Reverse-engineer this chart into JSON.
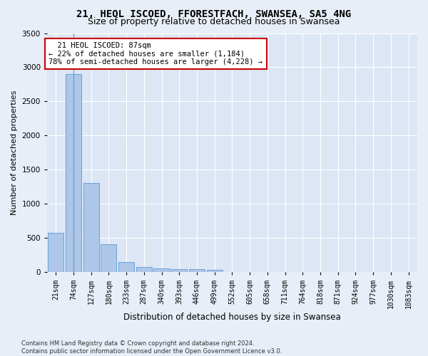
{
  "title_line1": "21, HEOL ISCOED, FFORESTFACH, SWANSEA, SA5 4NG",
  "title_line2": "Size of property relative to detached houses in Swansea",
  "xlabel": "Distribution of detached houses by size in Swansea",
  "ylabel": "Number of detached properties",
  "footnote": "Contains HM Land Registry data © Crown copyright and database right 2024.\nContains public sector information licensed under the Open Government Licence v3.0.",
  "bin_labels": [
    "21sqm",
    "74sqm",
    "127sqm",
    "180sqm",
    "233sqm",
    "287sqm",
    "340sqm",
    "393sqm",
    "446sqm",
    "499sqm",
    "552sqm",
    "605sqm",
    "658sqm",
    "711sqm",
    "764sqm",
    "818sqm",
    "871sqm",
    "924sqm",
    "977sqm",
    "1030sqm",
    "1083sqm"
  ],
  "bar_values": [
    580,
    2900,
    1310,
    415,
    155,
    80,
    60,
    50,
    45,
    40,
    0,
    0,
    0,
    0,
    0,
    0,
    0,
    0,
    0,
    0,
    0
  ],
  "bar_color": "#aec6e8",
  "bar_edge_color": "#5b9bd5",
  "highlight_bin": 1,
  "annotation_text": "  21 HEOL ISCOED: 87sqm\n← 22% of detached houses are smaller (1,184)\n78% of semi-detached houses are larger (4,228) →",
  "annotation_box_color": "#ffffff",
  "annotation_box_edge": "#cc0000",
  "ylim": [
    0,
    3500
  ],
  "yticks": [
    0,
    500,
    1000,
    1500,
    2000,
    2500,
    3000,
    3500
  ],
  "background_color": "#e8eef7",
  "plot_background": "#dce6f5",
  "grid_color": "#ffffff",
  "title_fontsize": 10,
  "subtitle_fontsize": 9,
  "tick_fontsize": 7,
  "ylabel_fontsize": 8,
  "xlabel_fontsize": 8.5
}
